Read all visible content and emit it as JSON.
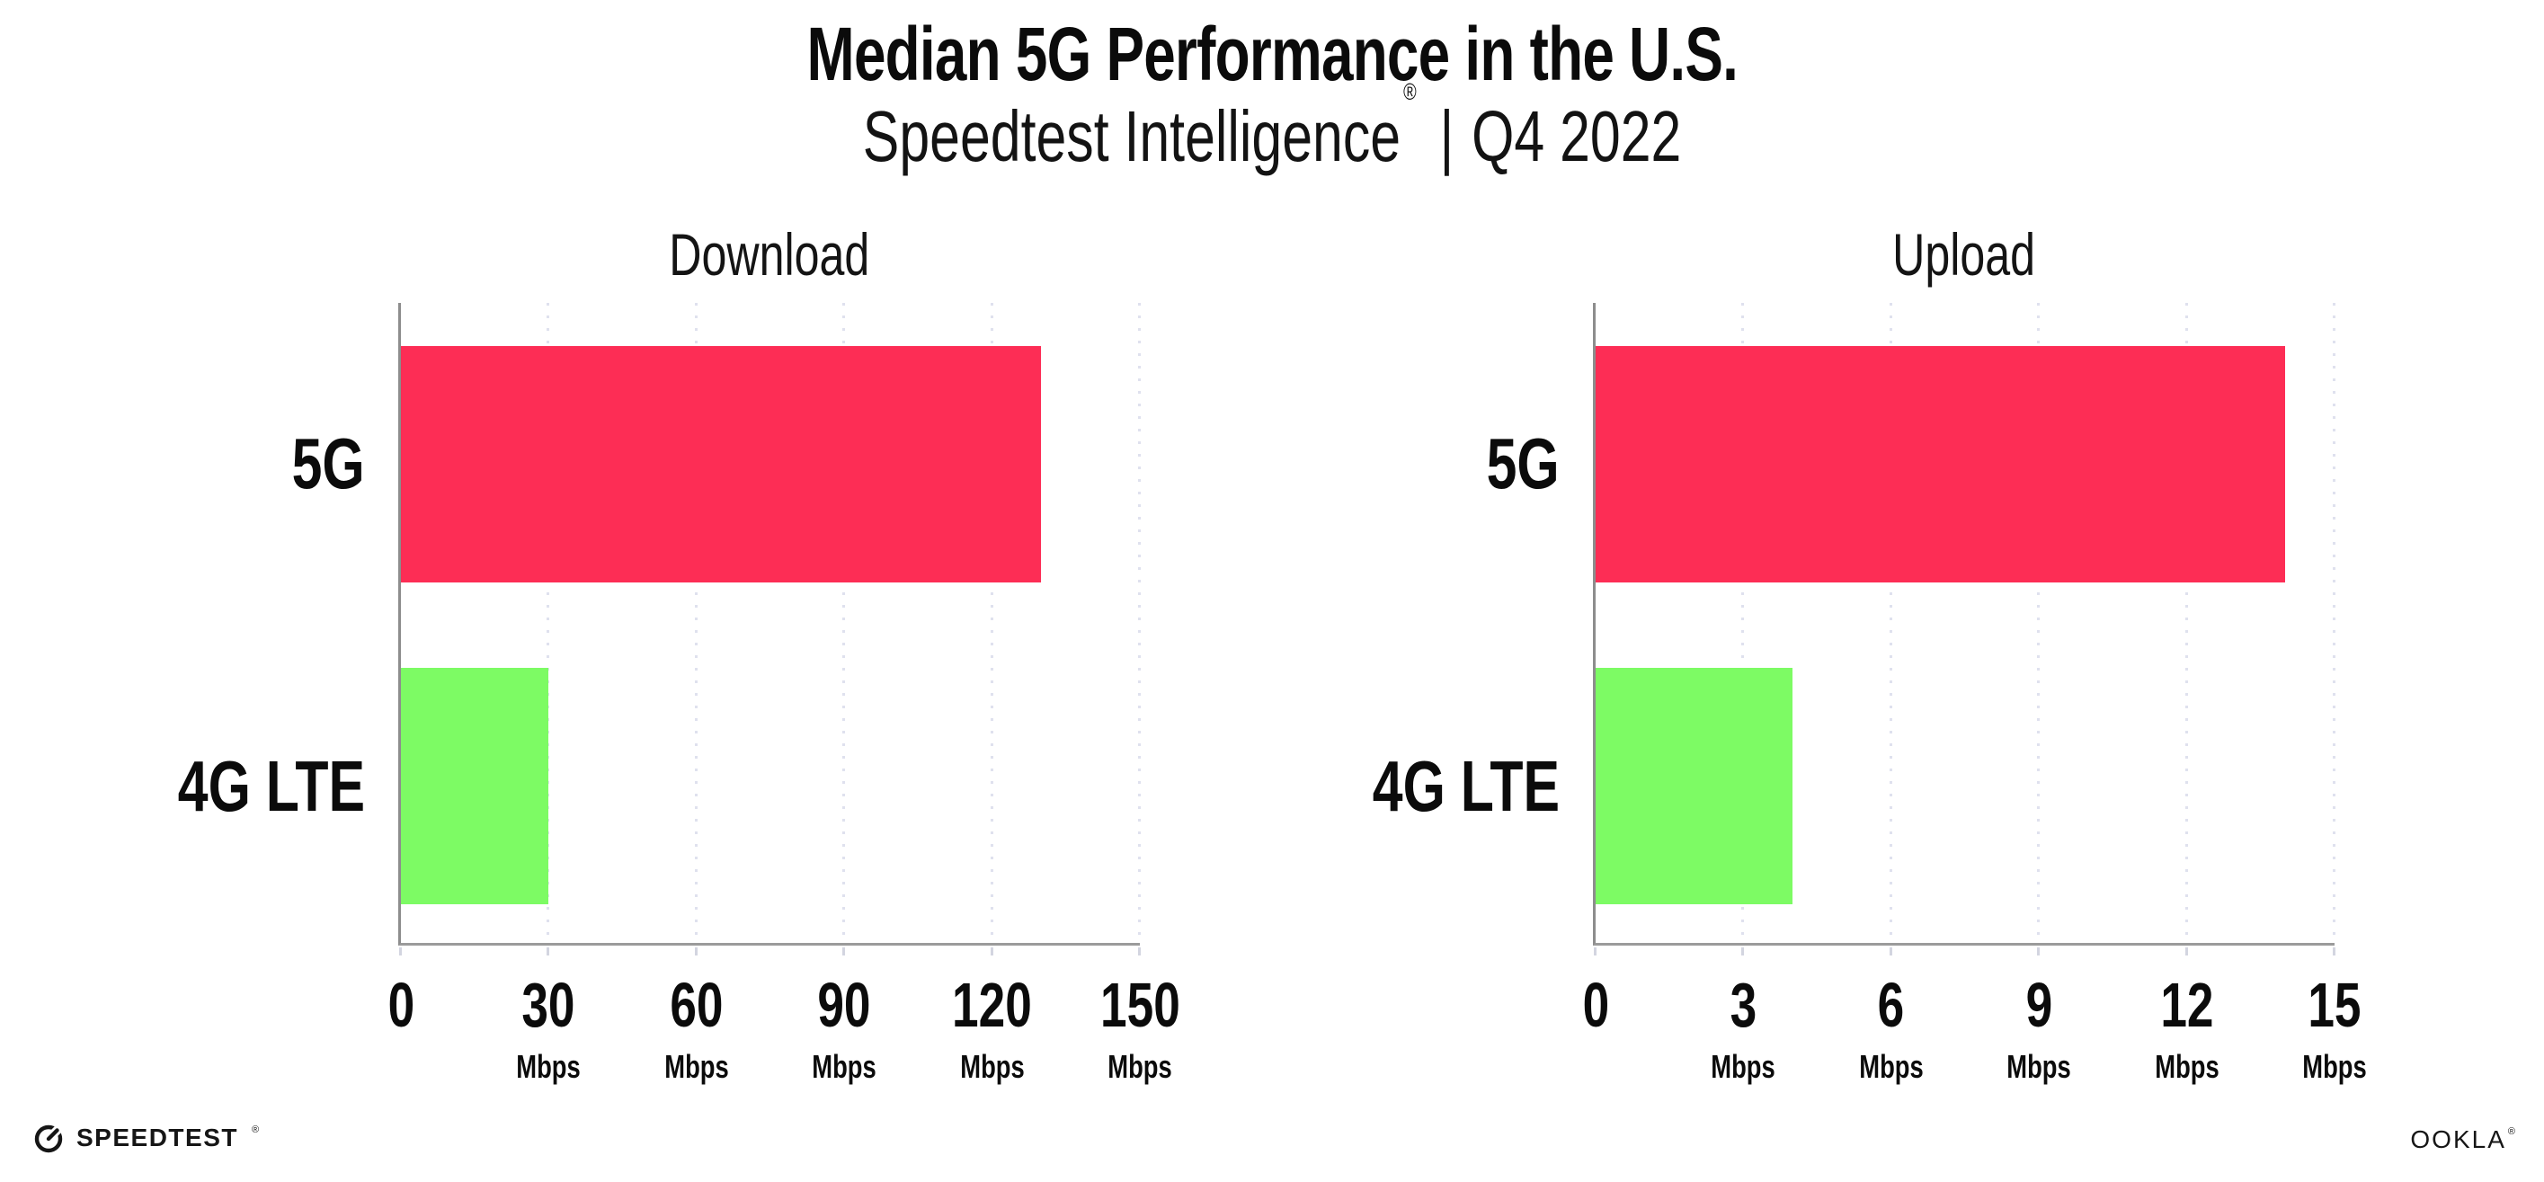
{
  "header": {
    "title": "Median 5G Performance in the U.S.",
    "subtitle_brand": "Speedtest Intelligence",
    "subtitle_reg": "®",
    "subtitle_sep": "|",
    "subtitle_period": "Q4 2022"
  },
  "colors": {
    "bar_5g": "#FD2D55",
    "bar_4g_lte": "#7DFB64",
    "gridline": "#dfe1ee",
    "axis": "#8d8d8d",
    "text": "#0b0b0b"
  },
  "chart_data": [
    {
      "type": "bar",
      "orientation": "horizontal",
      "title": "Download",
      "categories": [
        "5G",
        "4G LTE"
      ],
      "values": [
        130,
        30
      ],
      "unit": "Mbps",
      "xlim": [
        0,
        150
      ],
      "xticks": [
        0,
        30,
        60,
        90,
        120,
        150
      ],
      "bar_colors": [
        "#FD2D55",
        "#7DFB64"
      ],
      "grid": "vertical-dotted",
      "legend": "none"
    },
    {
      "type": "bar",
      "orientation": "horizontal",
      "title": "Upload",
      "categories": [
        "5G",
        "4G LTE"
      ],
      "values": [
        14,
        4
      ],
      "unit": "Mbps",
      "xlim": [
        0,
        15
      ],
      "xticks": [
        0,
        3,
        6,
        9,
        12,
        15
      ],
      "bar_colors": [
        "#FD2D55",
        "#7DFB64"
      ],
      "grid": "vertical-dotted",
      "legend": "none"
    }
  ],
  "footer": {
    "speedtest": "SPEEDTEST",
    "speedtest_tm": "®",
    "ookla": "OOKLA",
    "ookla_tm": "®"
  }
}
